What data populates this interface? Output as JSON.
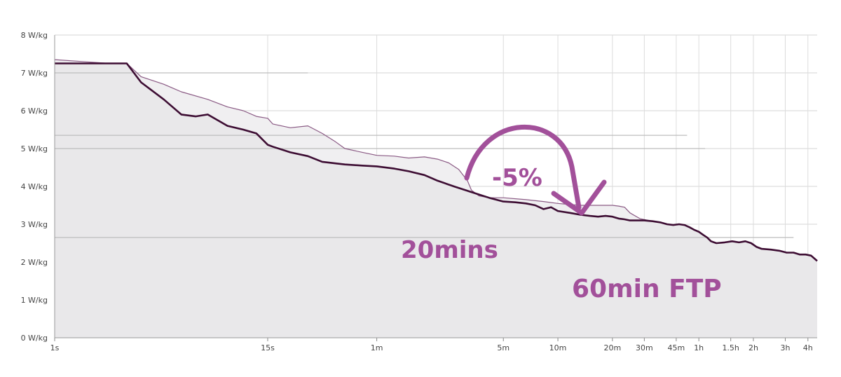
{
  "chart_data": {
    "type": "area",
    "y_unit": "W/kg",
    "x_scale": "log",
    "xlim": [
      1,
      16200
    ],
    "ylim": [
      0,
      8
    ],
    "grid": true,
    "y_ticks": [
      {
        "value": 0,
        "label": "0 W/kg"
      },
      {
        "value": 1,
        "label": "1 W/kg"
      },
      {
        "value": 2,
        "label": "2 W/kg"
      },
      {
        "value": 3,
        "label": "3 W/kg"
      },
      {
        "value": 4,
        "label": "4 W/kg"
      },
      {
        "value": 5,
        "label": "5 W/kg"
      },
      {
        "value": 6,
        "label": "6 W/kg"
      },
      {
        "value": 7,
        "label": "7 W/kg"
      },
      {
        "value": 8,
        "label": "8 W/kg"
      }
    ],
    "x_ticks": [
      {
        "value": 1,
        "label": "1s"
      },
      {
        "value": 15,
        "label": "15s"
      },
      {
        "value": 60,
        "label": "1m"
      },
      {
        "value": 300,
        "label": "5m"
      },
      {
        "value": 600,
        "label": "10m"
      },
      {
        "value": 1200,
        "label": "20m"
      },
      {
        "value": 1800,
        "label": "30m"
      },
      {
        "value": 2700,
        "label": "45m"
      },
      {
        "value": 3600,
        "label": "1h"
      },
      {
        "value": 5400,
        "label": "1.5h"
      },
      {
        "value": 7200,
        "label": "2h"
      },
      {
        "value": 10800,
        "label": "3h"
      },
      {
        "value": 14400,
        "label": "4h"
      }
    ],
    "reference_lines": [
      {
        "y": 7.0,
        "x_from": 1,
        "x_to": 25
      },
      {
        "y": 5.35,
        "x_from": 1,
        "x_to": 3100
      },
      {
        "y": 5.0,
        "x_from": 1,
        "x_to": 3900
      },
      {
        "y": 2.65,
        "x_from": 1,
        "x_to": 12000
      }
    ],
    "series": [
      {
        "color": "#3d0d33",
        "x": [
          1,
          2,
          2.5,
          3,
          4,
          5,
          6,
          7,
          9,
          11,
          13,
          15,
          16,
          20,
          25,
          30,
          40,
          50,
          60,
          75,
          90,
          110,
          130,
          160,
          200,
          250,
          300,
          350,
          400,
          450,
          500,
          550,
          600,
          700,
          800,
          900,
          1000,
          1100,
          1200,
          1300,
          1400,
          1500,
          1600,
          1800,
          2000,
          2200,
          2400,
          2600,
          2800,
          3000,
          3200,
          3400,
          3600,
          3800,
          4000,
          4200,
          4500,
          5000,
          5500,
          6000,
          6500,
          7000,
          7500,
          8000,
          9000,
          10000,
          11000,
          12000,
          13000,
          14000,
          15000,
          16200
        ],
        "y": [
          7.25,
          7.25,
          7.25,
          6.75,
          6.3,
          5.9,
          5.85,
          5.9,
          5.6,
          5.5,
          5.4,
          5.1,
          5.05,
          4.9,
          4.8,
          4.65,
          4.58,
          4.55,
          4.53,
          4.47,
          4.4,
          4.3,
          4.15,
          4.0,
          3.85,
          3.7,
          3.6,
          3.58,
          3.55,
          3.5,
          3.4,
          3.45,
          3.35,
          3.3,
          3.25,
          3.22,
          3.2,
          3.22,
          3.2,
          3.15,
          3.13,
          3.1,
          3.1,
          3.1,
          3.08,
          3.05,
          3.0,
          2.98,
          3.0,
          2.98,
          2.92,
          2.85,
          2.8,
          2.72,
          2.65,
          2.55,
          2.5,
          2.52,
          2.55,
          2.52,
          2.55,
          2.5,
          2.4,
          2.35,
          2.33,
          2.3,
          2.25,
          2.25,
          2.2,
          2.2,
          2.17,
          2.03
        ]
      },
      {
        "color": "#8a5a84",
        "x": [
          1,
          2,
          2.5,
          3,
          4,
          5,
          7,
          9,
          11,
          13,
          15,
          16,
          20,
          25,
          30,
          35,
          40,
          50,
          60,
          75,
          90,
          110,
          130,
          150,
          170,
          190,
          200,
          220,
          250,
          300,
          400,
          500,
          600,
          700,
          800,
          900,
          1000,
          1100,
          1200,
          1300,
          1400,
          1500,
          1700,
          1900
        ],
        "y": [
          7.35,
          7.25,
          7.25,
          6.9,
          6.7,
          6.5,
          6.3,
          6.1,
          6.0,
          5.85,
          5.8,
          5.65,
          5.55,
          5.6,
          5.4,
          5.2,
          5.0,
          4.9,
          4.82,
          4.8,
          4.75,
          4.78,
          4.72,
          4.62,
          4.45,
          4.15,
          3.9,
          3.75,
          3.7,
          3.7,
          3.65,
          3.6,
          3.55,
          3.52,
          3.5,
          3.5,
          3.5,
          3.5,
          3.5,
          3.48,
          3.45,
          3.3,
          3.15,
          3.1
        ]
      }
    ],
    "annotations": [
      {
        "text": "-5%"
      },
      {
        "text": "20mins"
      },
      {
        "text": "60min FTP"
      }
    ]
  }
}
